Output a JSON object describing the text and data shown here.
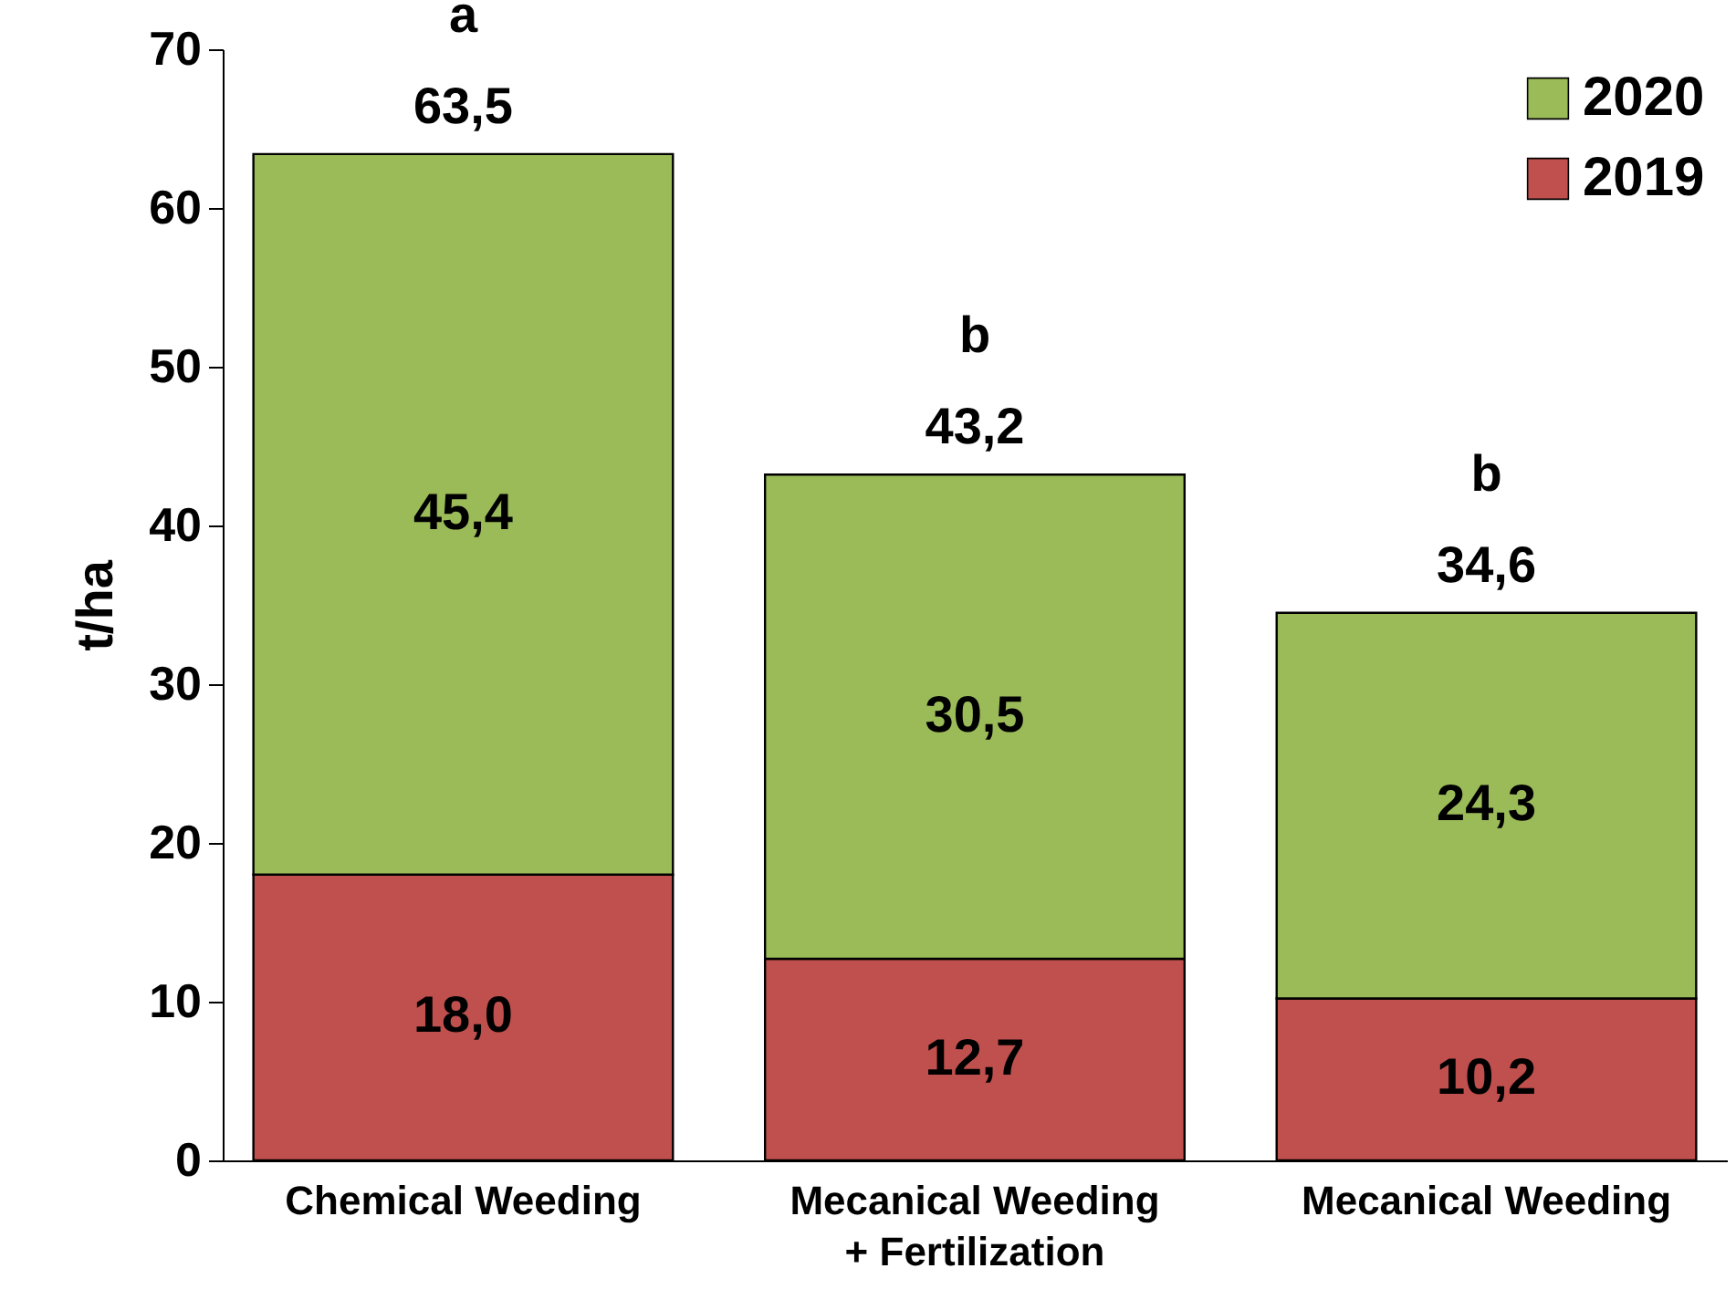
{
  "chart_data": {
    "type": "bar",
    "stacked": true,
    "ylabel": "t/ha",
    "categories": [
      "Chemical Weeding",
      "Mecanical Weeding + Fertilization",
      "Mecanical Weeding"
    ],
    "series": [
      {
        "name": "2019",
        "color": "#c0504d",
        "values": [
          18.0,
          12.7,
          10.2
        ],
        "value_labels": [
          "18,0",
          "12,7",
          "10,2"
        ]
      },
      {
        "name": "2020",
        "color": "#9bbb59",
        "values": [
          45.4,
          30.5,
          24.3
        ],
        "value_labels": [
          "45,4",
          "30,5",
          "24,3"
        ]
      }
    ],
    "totals": [
      "63,5",
      "43,2",
      "34,6"
    ],
    "annotations": [
      "a",
      "b",
      "b"
    ],
    "ylim": [
      0,
      70
    ],
    "yticks": [
      0,
      10,
      20,
      30,
      40,
      50,
      60,
      70
    ],
    "grid": false,
    "legend": "top right"
  }
}
